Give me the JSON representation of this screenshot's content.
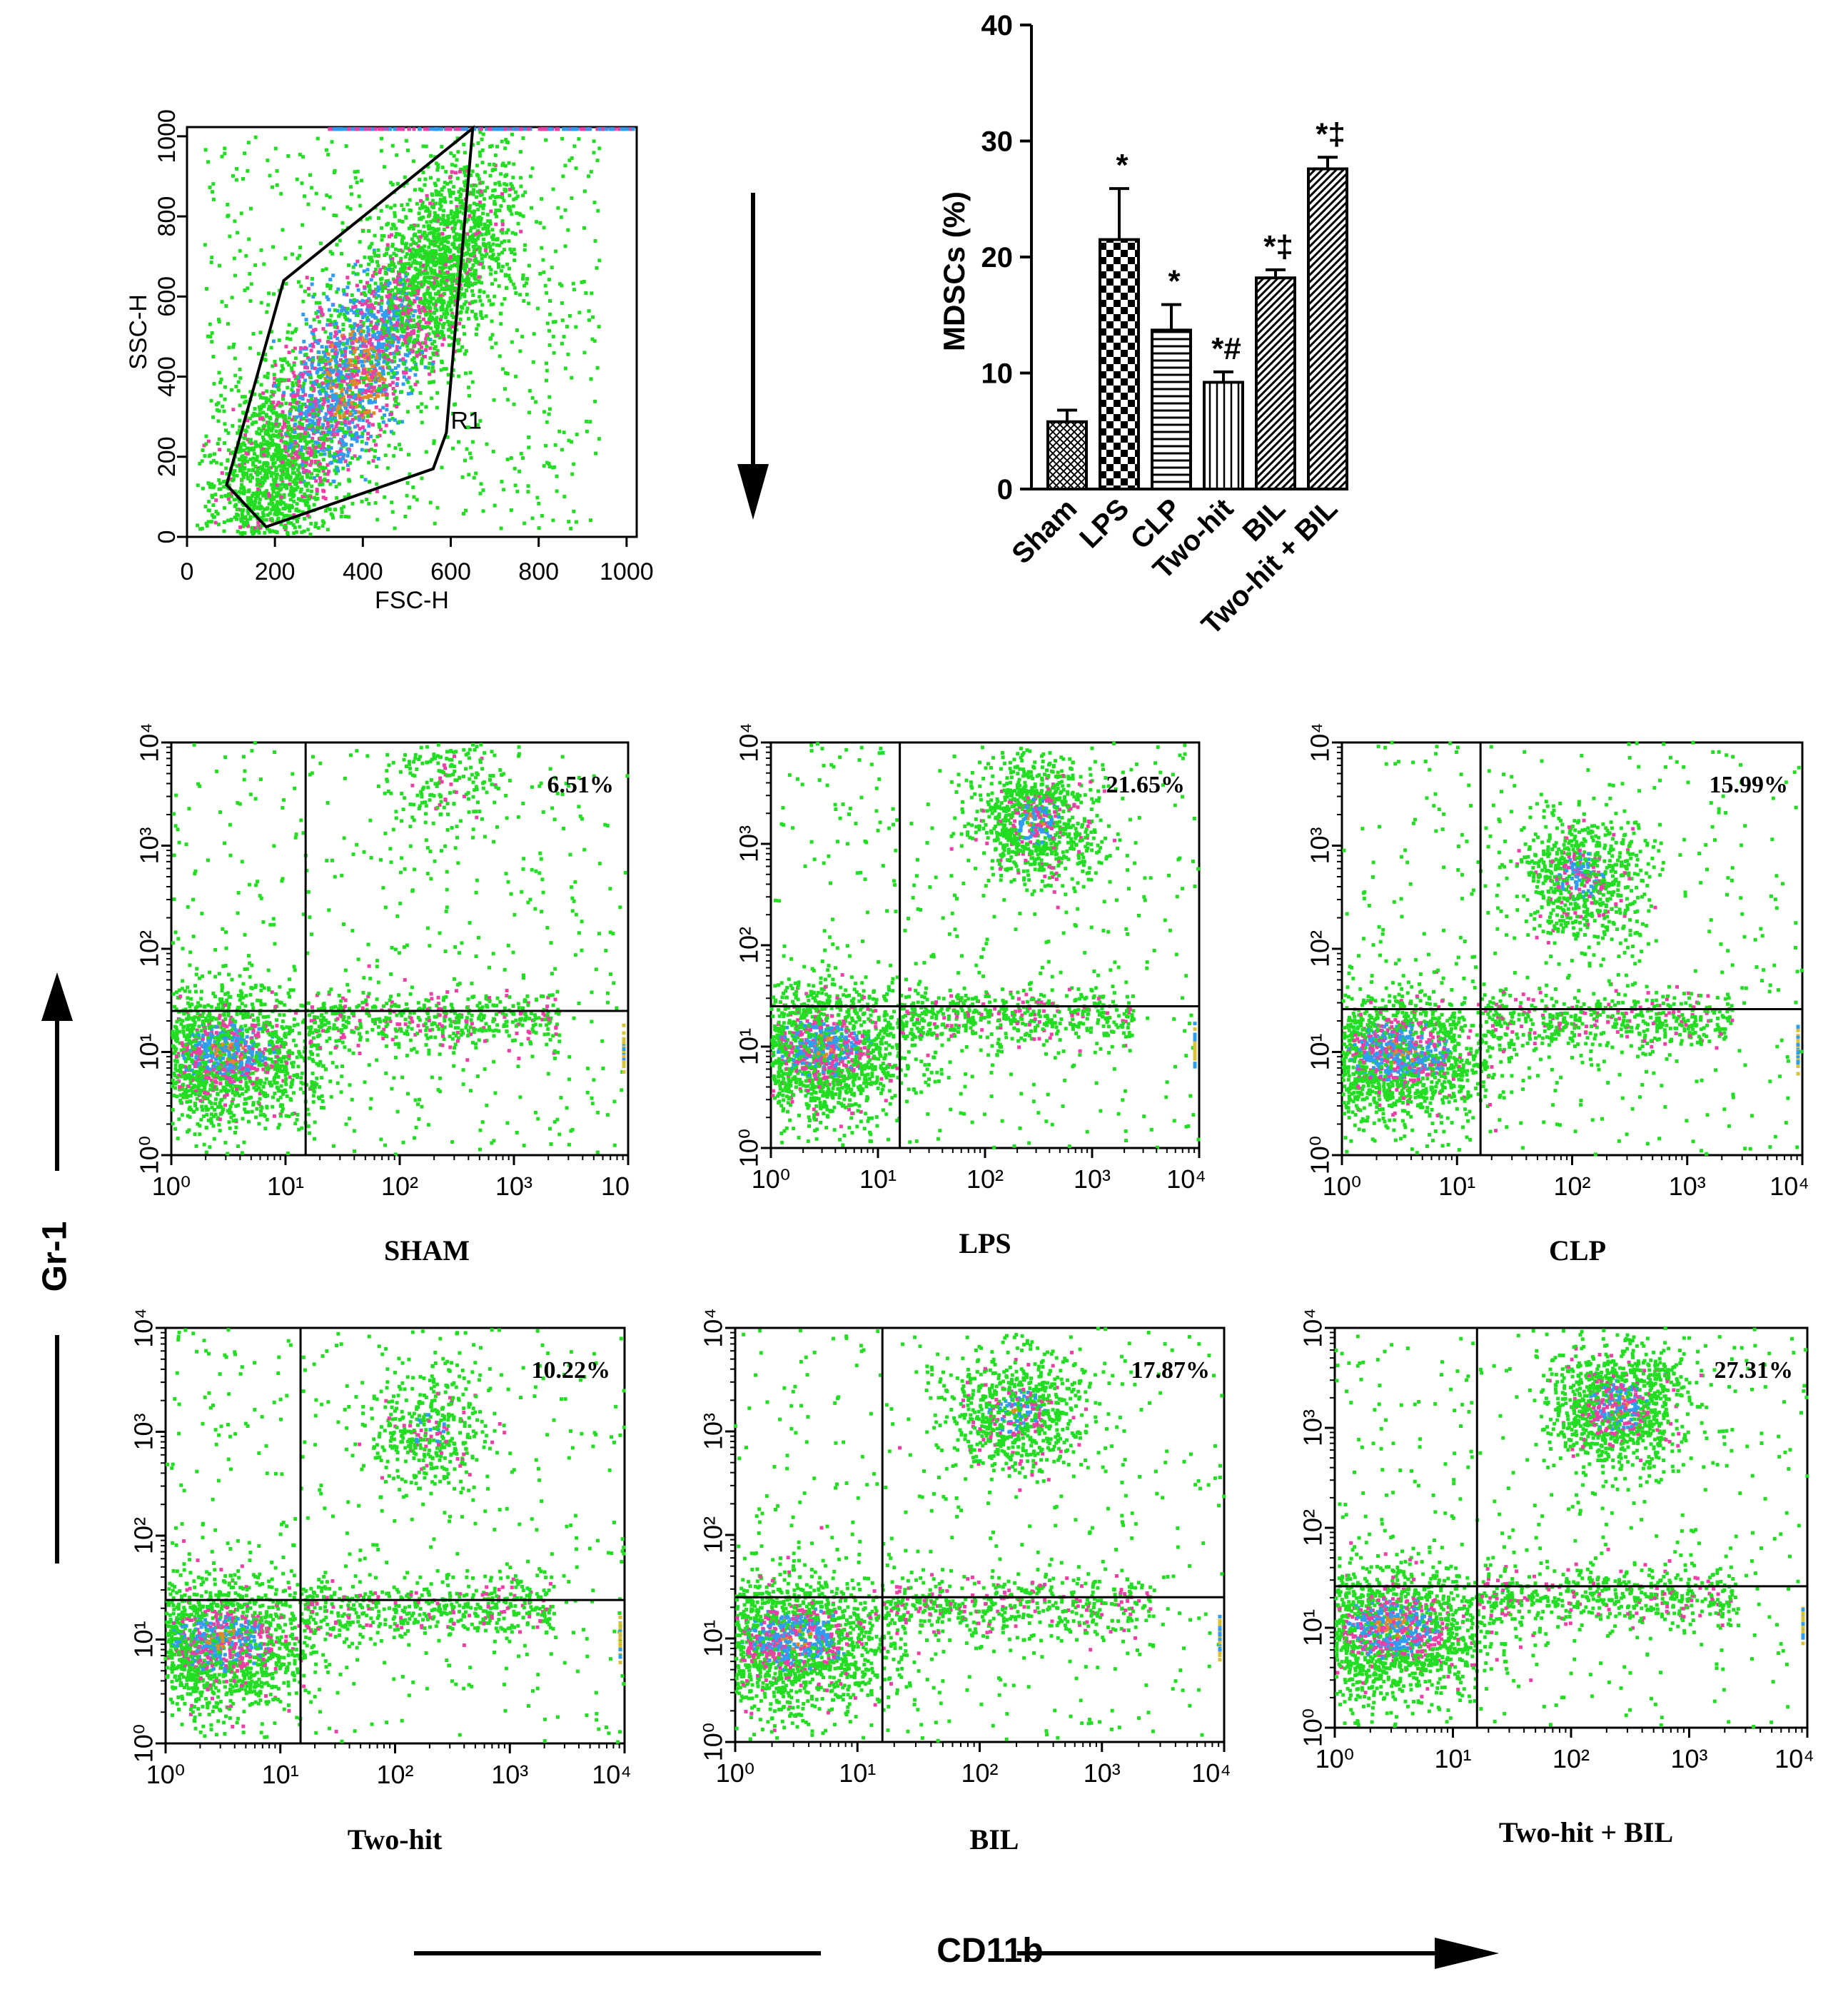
{
  "colors": {
    "background": "#ffffff",
    "axis": "#000000",
    "dot_palette": [
      "#22dd22",
      "#1ec81e",
      "#ee3fa6",
      "#2f9df0",
      "#e08a28"
    ]
  },
  "chart_data": [
    {
      "id": "fsc-ssc",
      "type": "scatter",
      "xlabel": "FSC-H",
      "ylabel": "SSC-H",
      "xlim": [
        0,
        1023
      ],
      "ylim": [
        0,
        1023
      ],
      "x_ticks": [
        "0",
        "200",
        "400",
        "600",
        "800",
        "1000"
      ],
      "y_ticks": [
        "0",
        "200",
        "400",
        "600",
        "800",
        "1000"
      ],
      "gate_label": "R1",
      "gate_polygon": [
        [
          90,
          130
        ],
        [
          220,
          640
        ],
        [
          650,
          1020
        ],
        [
          590,
          260
        ],
        [
          560,
          170
        ],
        [
          180,
          25
        ]
      ]
    },
    {
      "id": "mdsc-bar",
      "type": "bar",
      "categories": [
        "Sham",
        "LPS",
        "CLP",
        "Two-hit",
        "BIL",
        "Two-hit + BIL"
      ],
      "values": [
        5.8,
        21.5,
        13.7,
        9.2,
        18.2,
        27.6
      ],
      "errors": [
        1.0,
        4.4,
        2.2,
        0.9,
        0.7,
        1.0
      ],
      "markers": [
        "",
        "*",
        "*",
        "*#",
        "*‡",
        "*‡"
      ],
      "fills": [
        "crosshatch",
        "checker",
        "horizontal",
        "vertical",
        "diagonal",
        "diagonal"
      ],
      "ylabel": "MDSCs (%)",
      "ylim": [
        0,
        40
      ],
      "y_ticks": [
        "0",
        "10",
        "20",
        "30",
        "40"
      ]
    },
    {
      "id": "gr1-cd11b-panels",
      "type": "scatter",
      "xlabel": "CD11b",
      "ylabel": "Gr-1",
      "x_scale": "log",
      "y_scale": "log",
      "xlim": [
        1,
        10000
      ],
      "ylim": [
        1,
        10000
      ],
      "panels": [
        {
          "name": "SHAM",
          "percent": "6.51%",
          "gate": [
            15,
            25
          ],
          "x_last_tick": "10",
          "cluster": [
            250,
            5000,
            0.25
          ]
        },
        {
          "name": "LPS",
          "percent": "21.65%",
          "gate": [
            16,
            25
          ],
          "x_last_tick": "10⁴",
          "cluster": [
            300,
            1700,
            1.0
          ]
        },
        {
          "name": "CLP",
          "percent": "15.99%",
          "gate": [
            16,
            26
          ],
          "x_last_tick": "10⁴",
          "cluster": [
            120,
            500,
            0.8
          ]
        },
        {
          "name": "Two-hit",
          "percent": "10.22%",
          "gate": [
            15,
            24
          ],
          "x_last_tick": "10⁴",
          "cluster": [
            200,
            1000,
            0.45
          ]
        },
        {
          "name": "BIL",
          "percent": "17.87%",
          "gate": [
            16,
            25
          ],
          "x_last_tick": "10⁴",
          "cluster": [
            200,
            1500,
            0.85
          ]
        },
        {
          "name": "Two-hit + BIL",
          "percent": "27.31%",
          "gate": [
            16,
            26
          ],
          "x_last_tick": "10⁴",
          "cluster": [
            250,
            1600,
            1.2
          ]
        }
      ]
    }
  ]
}
